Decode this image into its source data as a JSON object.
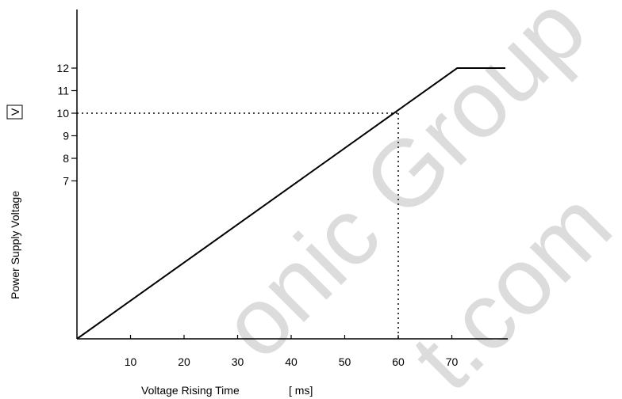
{
  "chart_data": {
    "type": "line",
    "xlabel": "Voltage Rising Time",
    "xunit": "[ ms]",
    "ylabel": "Power Supply Voltage",
    "yunit": "V",
    "x_ticks": [
      10,
      20,
      30,
      40,
      50,
      60,
      70
    ],
    "y_ticks": [
      7,
      8,
      9,
      10,
      11,
      12
    ],
    "xlim": [
      0,
      80
    ],
    "ylim": [
      0,
      12
    ],
    "series": [
      {
        "x": [
          0,
          71,
          80
        ],
        "y": [
          0,
          12,
          12
        ]
      }
    ],
    "reference_lines": [
      {
        "x": 60,
        "y": 10,
        "style": "dotted"
      }
    ],
    "grid": false
  },
  "watermark": [
    "onic Group",
    "t.com"
  ]
}
